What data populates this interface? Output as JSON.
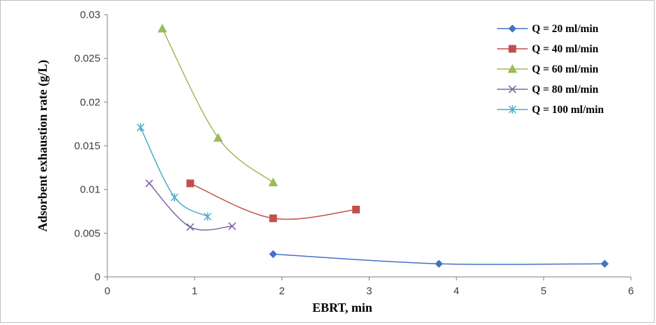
{
  "chart_data": {
    "type": "scatter",
    "title": "",
    "xlabel": "EBRT, min",
    "ylabel": "Adsorbent exhaustion rate (g/L)",
    "xlim": [
      0,
      6
    ],
    "ylim": [
      0,
      0.03
    ],
    "xticks": [
      "0",
      "1",
      "2",
      "3",
      "4",
      "5",
      "6"
    ],
    "yticks": [
      "0",
      "0.005",
      "0.01",
      "0.015",
      "0.02",
      "0.025",
      "0.03"
    ],
    "grid": false,
    "legend_position": "top-right",
    "smooth_lines": true,
    "series": [
      {
        "name": "Q = 20 ml/min",
        "marker": "diamond",
        "color": "#4472C4",
        "x": [
          1.9,
          3.8,
          5.7
        ],
        "y": [
          0.0026,
          0.0015,
          0.0015
        ]
      },
      {
        "name": "Q = 40 ml/min",
        "marker": "square",
        "color": "#C0504D",
        "x": [
          0.95,
          1.9,
          2.85
        ],
        "y": [
          0.0107,
          0.0067,
          0.0077
        ]
      },
      {
        "name": "Q = 60 ml/min",
        "marker": "triangle",
        "color": "#9BBB59",
        "x": [
          0.63,
          1.27,
          1.9
        ],
        "y": [
          0.0284,
          0.0159,
          0.0108
        ]
      },
      {
        "name": "Q = 80 ml/min",
        "marker": "x",
        "color": "#8064A2",
        "x": [
          0.48,
          0.95,
          1.43
        ],
        "y": [
          0.0107,
          0.0057,
          0.0058
        ]
      },
      {
        "name": "Q = 100 ml/min",
        "marker": "star",
        "color": "#4BACC6",
        "x": [
          0.38,
          0.77,
          1.15
        ],
        "y": [
          0.0171,
          0.0091,
          0.0069
        ]
      }
    ]
  }
}
